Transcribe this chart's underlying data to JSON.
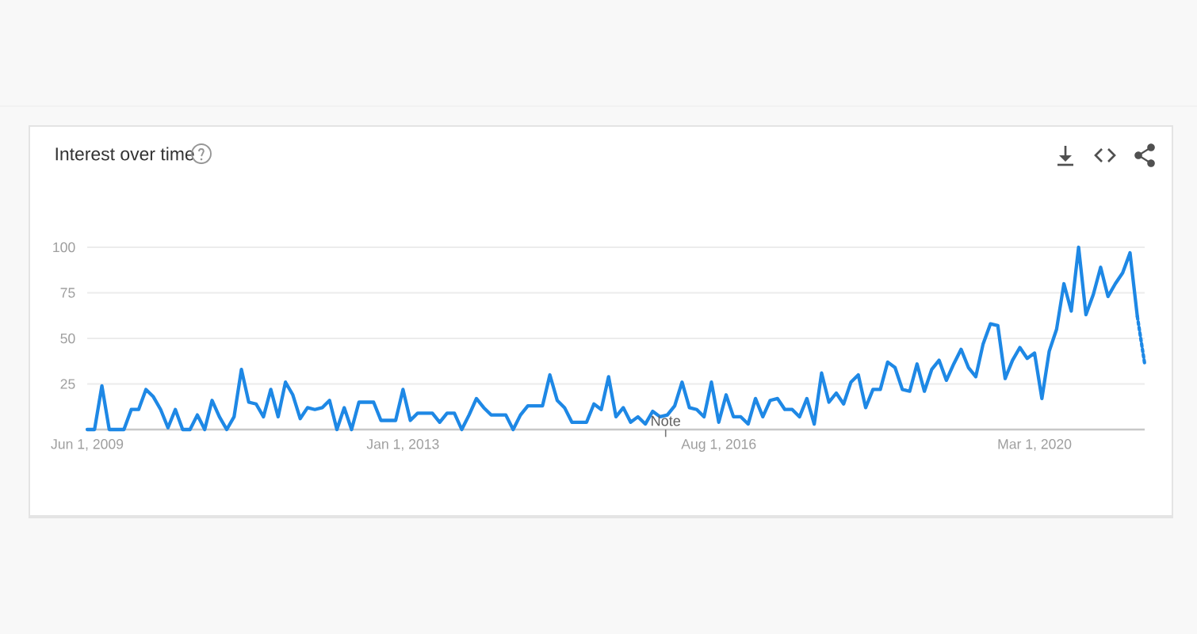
{
  "chart_data": {
    "type": "line",
    "title": "Interest over time",
    "xlim": [
      "2009-06",
      "2021-06"
    ],
    "xticks": [
      {
        "value": "2009-06-01",
        "label": "Jun 1, 2009"
      },
      {
        "value": "2013-01-01",
        "label": "Jan 1, 2013"
      },
      {
        "value": "2016-08-01",
        "label": "Aug 1, 2016"
      },
      {
        "value": "2020-03-01",
        "label": "Mar 1, 2020"
      }
    ],
    "ylim": [
      0,
      100
    ],
    "yticks": [
      25,
      50,
      75,
      100
    ],
    "grid": "y",
    "marker": "none",
    "annotations": [
      "Note"
    ],
    "series": [
      {
        "color": "#1e88e5",
        "line_style": "solid",
        "x": [
          "2009-06",
          "2009-07",
          "2009-08",
          "2009-09",
          "2009-10",
          "2009-11",
          "2009-12",
          "2010-01",
          "2010-02",
          "2010-03",
          "2010-04",
          "2010-05",
          "2010-06",
          "2010-07",
          "2010-08",
          "2010-09",
          "2010-10",
          "2010-11",
          "2010-12",
          "2011-01",
          "2011-02",
          "2011-03",
          "2011-04",
          "2011-05",
          "2011-06",
          "2011-07",
          "2011-08",
          "2011-09",
          "2011-10",
          "2011-11",
          "2011-12",
          "2012-01",
          "2012-02",
          "2012-03",
          "2012-04",
          "2012-05",
          "2012-06",
          "2012-07",
          "2012-08",
          "2012-09",
          "2012-10",
          "2012-11",
          "2012-12",
          "2013-01",
          "2013-02",
          "2013-03",
          "2013-04",
          "2013-05",
          "2013-06",
          "2013-07",
          "2013-08",
          "2013-09",
          "2013-10",
          "2013-11",
          "2013-12",
          "2014-01",
          "2014-02",
          "2014-03",
          "2014-04",
          "2014-05",
          "2014-06",
          "2014-07",
          "2014-08",
          "2014-09",
          "2014-10",
          "2014-11",
          "2014-12",
          "2015-01",
          "2015-02",
          "2015-03",
          "2015-04",
          "2015-05",
          "2015-06",
          "2015-07",
          "2015-08",
          "2015-09",
          "2015-10",
          "2015-11",
          "2015-12",
          "2016-01",
          "2016-02",
          "2016-03",
          "2016-04",
          "2016-05",
          "2016-06",
          "2016-07",
          "2016-08",
          "2016-09",
          "2016-10",
          "2016-11",
          "2016-12",
          "2017-01",
          "2017-02",
          "2017-03",
          "2017-04",
          "2017-05",
          "2017-06",
          "2017-07",
          "2017-08",
          "2017-09",
          "2017-10",
          "2017-11",
          "2017-12",
          "2018-01",
          "2018-02",
          "2018-03",
          "2018-04",
          "2018-05",
          "2018-06",
          "2018-07",
          "2018-08",
          "2018-09",
          "2018-10",
          "2018-11",
          "2018-12",
          "2019-01",
          "2019-02",
          "2019-03",
          "2019-04",
          "2019-05",
          "2019-06",
          "2019-07",
          "2019-08",
          "2019-09",
          "2019-10",
          "2019-11",
          "2019-12",
          "2020-01",
          "2020-02",
          "2020-03",
          "2020-04",
          "2020-05",
          "2020-06",
          "2020-07",
          "2020-08",
          "2020-09",
          "2020-10",
          "2020-11",
          "2020-12",
          "2021-01",
          "2021-02",
          "2021-03",
          "2021-04",
          "2021-05"
        ],
        "values": [
          0,
          0,
          24,
          0,
          0,
          0,
          11,
          11,
          22,
          18,
          11,
          1,
          11,
          0,
          0,
          8,
          0,
          16,
          7,
          0,
          7,
          33,
          15,
          14,
          7,
          22,
          7,
          26,
          19,
          6,
          12,
          11,
          12,
          16,
          0,
          12,
          0,
          15,
          15,
          15,
          5,
          5,
          5,
          22,
          5,
          9,
          9,
          9,
          4,
          9,
          9,
          0,
          8,
          17,
          12,
          8,
          8,
          8,
          0,
          8,
          13,
          13,
          13,
          30,
          16,
          12,
          4,
          4,
          4,
          14,
          11,
          29,
          7,
          12,
          4,
          7,
          3,
          10,
          7,
          8,
          13,
          26,
          12,
          11,
          7,
          26,
          4,
          19,
          7,
          7,
          3,
          17,
          7,
          16,
          17,
          11,
          11,
          7,
          17,
          3,
          31,
          15,
          20,
          14,
          26,
          30,
          12,
          22,
          22,
          37,
          34,
          22,
          21,
          36,
          21,
          33,
          38,
          27,
          36,
          44,
          34,
          29,
          47,
          58,
          57,
          28,
          38,
          45,
          39,
          42,
          17,
          43,
          55,
          80,
          65,
          100,
          63,
          74,
          89,
          73,
          80,
          86,
          97,
          62
        ]
      },
      {
        "color": "#1e88e5",
        "line_style": "dotted",
        "x": [
          "2021-05",
          "2021-06"
        ],
        "values": [
          62,
          36
        ]
      }
    ]
  }
}
